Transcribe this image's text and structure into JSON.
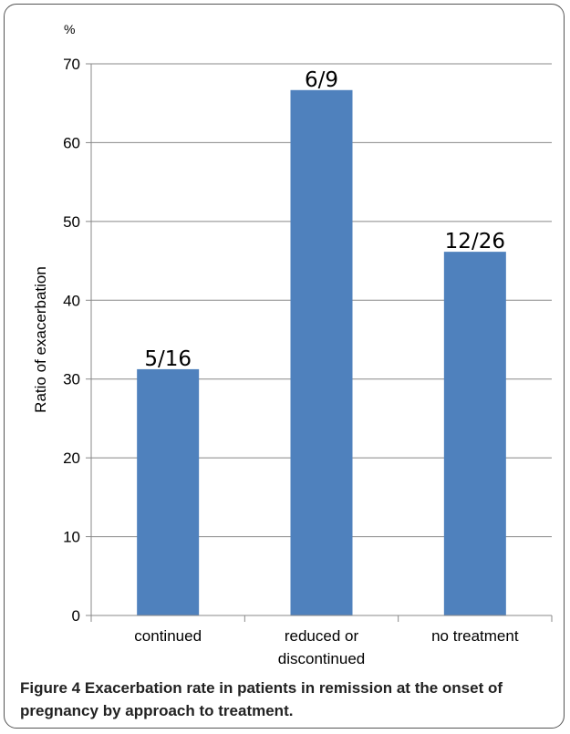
{
  "chart_data": {
    "type": "bar",
    "categories": [
      [
        "continued"
      ],
      [
        "reduced or",
        "discontinued"
      ],
      [
        "no treatment"
      ]
    ],
    "values": [
      31.25,
      66.67,
      46.15
    ],
    "data_labels": [
      "5/16",
      "6/9",
      "12/26"
    ],
    "ylabel": "Ratio of exacerbation",
    "y_unit": "%",
    "ylim": [
      0,
      70
    ],
    "yticks": [
      0,
      10,
      20,
      30,
      40,
      50,
      60,
      70
    ],
    "grid": true,
    "bar_color": "#4f81bd"
  },
  "caption": {
    "figure_number": "Figure 4",
    "text": "Exacerbation rate in patients in remission at the onset of pregnancy by approach to treatment."
  }
}
